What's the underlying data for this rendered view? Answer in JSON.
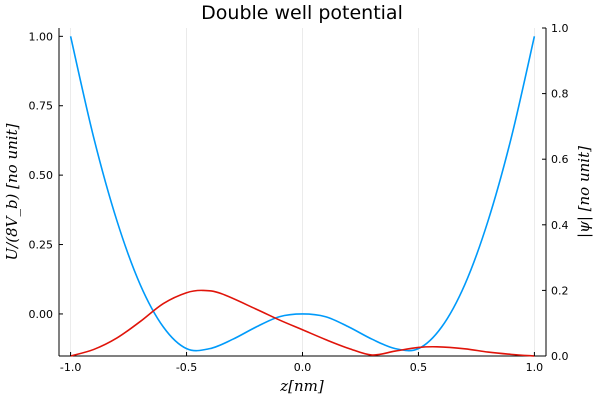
{
  "chart_data": {
    "type": "line",
    "title": "Double well potential",
    "xlabel": "z[nm]",
    "ylabel_left": "U/(8V_b) [no unit]",
    "ylabel_right": "|ψ| [no unit]",
    "xlim": [
      -1.05,
      1.05
    ],
    "ylim_left": [
      -0.1515,
      1.03
    ],
    "ylim_right": [
      0,
      1
    ],
    "grid": true,
    "legend": "none",
    "x_ticks": [
      -1.0,
      -0.5,
      0.0,
      0.5,
      1.0
    ],
    "x_tick_labels": [
      "-1.0",
      "-0.5",
      "0.0",
      "0.5",
      "1.0"
    ],
    "y_left_ticks": [
      0.0,
      0.25,
      0.5,
      0.75,
      1.0
    ],
    "y_left_tick_labels": [
      "0.00",
      "0.25",
      "0.50",
      "0.75",
      "1.00"
    ],
    "y_right_ticks": [
      0.0,
      0.2,
      0.4,
      0.6,
      0.8,
      1.0
    ],
    "y_right_tick_labels": [
      "0.0",
      "0.2",
      "0.4",
      "0.6",
      "0.8",
      "1.0"
    ],
    "series": [
      {
        "axis": "left",
        "color": "#009AFA",
        "x": [
          -1.0,
          -0.9,
          -0.8,
          -0.7,
          -0.6,
          -0.5,
          -0.4,
          -0.3,
          -0.2,
          -0.1,
          0.0,
          0.1,
          0.2,
          0.3,
          0.4,
          0.5,
          0.6,
          0.7,
          0.8,
          0.9,
          1.0
        ],
        "y": [
          1.0,
          0.634,
          0.335,
          0.106,
          -0.047,
          -0.125,
          -0.125,
          -0.091,
          -0.047,
          -0.01,
          0.0,
          -0.01,
          -0.047,
          -0.091,
          -0.125,
          -0.125,
          -0.047,
          0.106,
          0.335,
          0.634,
          1.0
        ]
      },
      {
        "axis": "right",
        "color": "#E0140A",
        "x": [
          -1.0,
          -0.9,
          -0.8,
          -0.7,
          -0.6,
          -0.5,
          -0.43,
          -0.35,
          -0.2,
          -0.1,
          0.0,
          0.1,
          0.2,
          0.3,
          0.4,
          0.5,
          0.58,
          0.7,
          0.8,
          0.9,
          1.0
        ],
        "y": [
          0.0,
          0.02,
          0.055,
          0.105,
          0.16,
          0.193,
          0.2,
          0.19,
          0.143,
          0.11,
          0.08,
          0.05,
          0.023,
          0.003,
          0.015,
          0.026,
          0.028,
          0.022,
          0.012,
          0.005,
          0.0
        ]
      }
    ]
  }
}
